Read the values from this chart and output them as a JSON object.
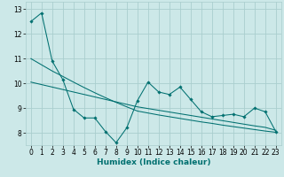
{
  "xlabel": "Humidex (Indice chaleur)",
  "x": [
    0,
    1,
    2,
    3,
    4,
    5,
    6,
    7,
    8,
    9,
    10,
    11,
    12,
    13,
    14,
    15,
    16,
    17,
    18,
    19,
    20,
    21,
    22,
    23
  ],
  "y_main": [
    12.5,
    12.85,
    10.9,
    10.15,
    8.95,
    8.6,
    8.6,
    8.05,
    7.6,
    8.2,
    9.3,
    10.05,
    9.65,
    9.55,
    9.85,
    9.35,
    8.85,
    8.65,
    8.7,
    8.75,
    8.65,
    9.0,
    8.85,
    8.05
  ],
  "y_trend1": [
    11.0,
    10.75,
    10.5,
    10.28,
    10.05,
    9.83,
    9.62,
    9.42,
    9.23,
    9.05,
    8.88,
    8.8,
    8.72,
    8.65,
    8.58,
    8.51,
    8.44,
    8.38,
    8.31,
    8.25,
    8.19,
    8.13,
    8.07,
    8.02
  ],
  "y_trend2": [
    10.05,
    9.95,
    9.85,
    9.75,
    9.65,
    9.55,
    9.45,
    9.35,
    9.25,
    9.15,
    9.05,
    8.98,
    8.91,
    8.84,
    8.77,
    8.7,
    8.63,
    8.56,
    8.49,
    8.42,
    8.35,
    8.28,
    8.22,
    8.1
  ],
  "bg_color": "#cce8e8",
  "grid_color": "#aacece",
  "line_color": "#007070",
  "marker_color": "#007070",
  "xlim": [
    -0.5,
    23.5
  ],
  "ylim": [
    7.5,
    13.3
  ],
  "yticks": [
    8,
    9,
    10,
    11,
    12,
    13
  ],
  "xticks": [
    0,
    1,
    2,
    3,
    4,
    5,
    6,
    7,
    8,
    9,
    10,
    11,
    12,
    13,
    14,
    15,
    16,
    17,
    18,
    19,
    20,
    21,
    22,
    23
  ],
  "xlabel_fontsize": 6.5,
  "tick_fontsize": 5.5
}
